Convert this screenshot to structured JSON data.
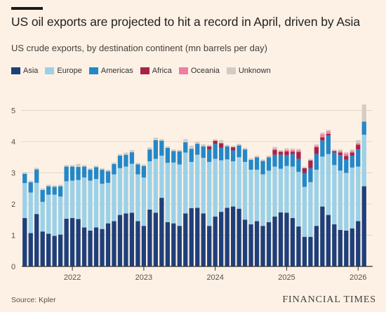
{
  "title": "US oil exports are projected to hit a record in April, driven by Asia",
  "subtitle": "US crude exports, by destination continent (mn barrels per day)",
  "source": "Source: Kpler",
  "publisher": "FINANCIAL TIMES",
  "legend": [
    {
      "name": "Asia",
      "color": "#1f3f7a"
    },
    {
      "name": "Europe",
      "color": "#9ad1e8"
    },
    {
      "name": "Americas",
      "color": "#2388c9"
    },
    {
      "name": "Africa",
      "color": "#a8234a"
    },
    {
      "name": "Oceania",
      "color": "#ef7ea3"
    },
    {
      "name": "Unknown",
      "color": "#d4ccc3"
    }
  ],
  "chart_data": {
    "type": "bar",
    "stacked": true,
    "x_start": "2021-05",
    "x_ticks": [
      "2022",
      "2023",
      "2024",
      "2025",
      "2026"
    ],
    "y_ticks": [
      "0",
      "1",
      "2",
      "3",
      "4",
      "5"
    ],
    "ylim": [
      0,
      5.2
    ],
    "grid": true,
    "legend_position": "top-left",
    "series": [
      {
        "name": "Asia",
        "color": "#1f3f7a",
        "values": [
          1.55,
          1.07,
          1.68,
          1.12,
          1.05,
          0.98,
          1.02,
          1.53,
          1.55,
          1.52,
          1.25,
          1.15,
          1.25,
          1.2,
          1.38,
          1.45,
          1.65,
          1.7,
          1.72,
          1.45,
          1.3,
          1.82,
          1.72,
          2.2,
          1.42,
          1.38,
          1.3,
          1.7,
          1.87,
          1.88,
          1.7,
          1.3,
          1.6,
          1.75,
          1.88,
          1.92,
          1.85,
          1.5,
          1.35,
          1.45,
          1.3,
          1.42,
          1.6,
          1.73,
          1.72,
          1.55,
          1.28,
          0.95,
          0.95,
          1.3,
          1.92,
          1.65,
          1.35,
          1.17,
          1.15,
          1.22,
          1.45,
          2.57
        ]
      },
      {
        "name": "Europe",
        "color": "#9ad1e8",
        "values": [
          1.12,
          1.3,
          1.0,
          0.95,
          1.25,
          1.32,
          1.22,
          1.2,
          1.2,
          1.25,
          1.6,
          1.6,
          1.55,
          1.45,
          1.3,
          1.5,
          1.5,
          1.5,
          1.57,
          1.5,
          1.55,
          1.55,
          1.73,
          1.35,
          1.9,
          1.95,
          1.97,
          1.95,
          1.48,
          1.7,
          1.78,
          2.05,
          1.85,
          1.65,
          1.55,
          1.45,
          1.65,
          1.85,
          1.75,
          1.65,
          1.65,
          1.65,
          1.6,
          1.4,
          1.5,
          1.65,
          1.75,
          1.6,
          1.75,
          1.8,
          1.6,
          1.95,
          1.9,
          1.9,
          1.85,
          1.95,
          1.75,
          1.65
        ]
      },
      {
        "name": "Americas",
        "color": "#2388c9",
        "values": [
          0.3,
          0.33,
          0.43,
          0.38,
          0.27,
          0.25,
          0.33,
          0.47,
          0.45,
          0.42,
          0.35,
          0.35,
          0.38,
          0.45,
          0.37,
          0.33,
          0.4,
          0.38,
          0.37,
          0.32,
          0.37,
          0.38,
          0.6,
          0.48,
          0.48,
          0.37,
          0.42,
          0.33,
          0.42,
          0.35,
          0.37,
          0.4,
          0.48,
          0.4,
          0.42,
          0.35,
          0.38,
          0.4,
          0.32,
          0.4,
          0.43,
          0.43,
          0.38,
          0.45,
          0.35,
          0.4,
          0.42,
          0.45,
          0.45,
          0.5,
          0.52,
          0.6,
          0.4,
          0.5,
          0.42,
          0.38,
          0.55,
          0.42
        ]
      },
      {
        "name": "Africa",
        "color": "#a8234a",
        "values": [
          0,
          0,
          0,
          0,
          0,
          0,
          0,
          0,
          0,
          0,
          0,
          0,
          0,
          0,
          0,
          0,
          0,
          0,
          0,
          0,
          0,
          0,
          0,
          0,
          0,
          0,
          0,
          0,
          0,
          0,
          0,
          0.1,
          0.1,
          0.15,
          0,
          0.1,
          0,
          0,
          0,
          0,
          0,
          0,
          0.15,
          0.1,
          0.12,
          0.08,
          0.22,
          0.15,
          0.25,
          0.22,
          0.1,
          0.05,
          0.05,
          0.08,
          0.12,
          0.1,
          0.15,
          0
        ]
      },
      {
        "name": "Oceania",
        "color": "#ef7ea3",
        "values": [
          0,
          0,
          0,
          0,
          0,
          0,
          0,
          0,
          0,
          0,
          0,
          0,
          0,
          0,
          0,
          0,
          0,
          0,
          0,
          0,
          0,
          0,
          0,
          0,
          0,
          0,
          0,
          0,
          0,
          0,
          0,
          0,
          0,
          0,
          0,
          0,
          0,
          0,
          0,
          0,
          0,
          0,
          0.05,
          0,
          0.05,
          0.05,
          0.05,
          0,
          0,
          0.05,
          0.1,
          0.08,
          0,
          0.05,
          0.08,
          0.05,
          0.05,
          0
        ]
      },
      {
        "name": "Unknown",
        "color": "#d4ccc3",
        "values": [
          0.05,
          0.05,
          0.05,
          0.05,
          0.05,
          0.05,
          0.05,
          0.05,
          0.05,
          0.1,
          0.05,
          0.05,
          0.05,
          0.05,
          0.05,
          0.05,
          0.05,
          0.07,
          0.07,
          0.05,
          0.05,
          0.07,
          0.08,
          0.05,
          0.05,
          0.05,
          0.05,
          0.1,
          0.1,
          0.07,
          0.07,
          0.05,
          0.05,
          0.1,
          0.05,
          0.05,
          0.05,
          0.05,
          0.05,
          0.05,
          0.05,
          0.05,
          0.05,
          0.05,
          0.05,
          0.05,
          0.05,
          0.05,
          0.05,
          0.05,
          0.05,
          0.05,
          0.05,
          0.05,
          0.05,
          0.05,
          0.1,
          0.55
        ]
      }
    ]
  }
}
